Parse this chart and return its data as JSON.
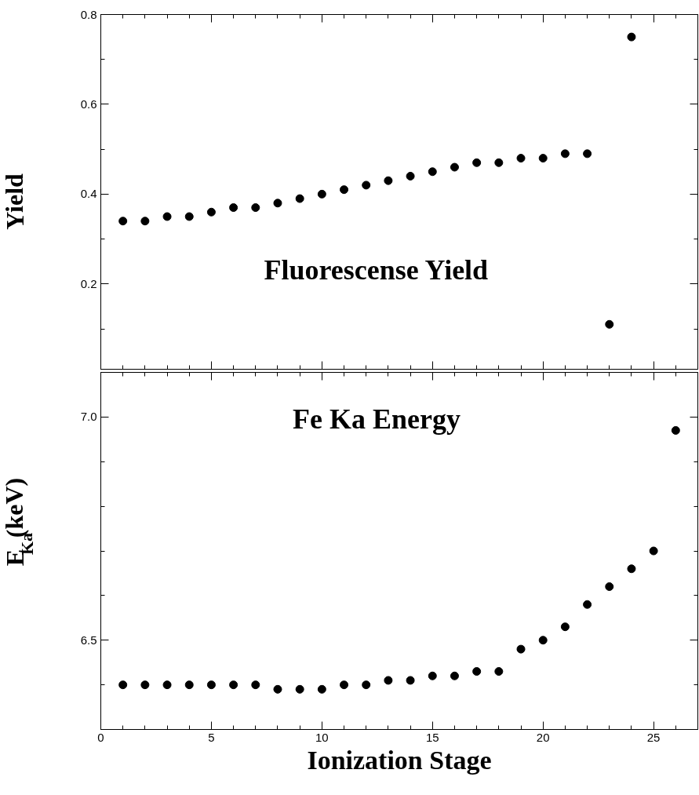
{
  "chart_data": [
    {
      "type": "scatter",
      "title": "Fluorescense Yield",
      "ylabel": "Yield",
      "marker": "circle",
      "tick_labels": "y",
      "grid": false,
      "x": [
        1,
        2,
        3,
        4,
        5,
        6,
        7,
        8,
        9,
        10,
        11,
        12,
        13,
        14,
        15,
        16,
        17,
        18,
        19,
        20,
        21,
        22,
        23,
        24
      ],
      "series": [
        {
          "color": "#000000",
          "values": [
            0.34,
            0.34,
            0.35,
            0.35,
            0.36,
            0.37,
            0.37,
            0.38,
            0.39,
            0.4,
            0.41,
            0.42,
            0.43,
            0.44,
            0.45,
            0.46,
            0.47,
            0.47,
            0.48,
            0.48,
            0.49,
            0.49,
            0.11,
            0.75
          ]
        }
      ],
      "xlim": [
        0,
        27
      ],
      "ylim": [
        0.01,
        0.8
      ],
      "xticks": [
        0,
        {
          "value": 1,
          "label": null
        },
        {
          "value": 2,
          "label": null
        },
        {
          "value": 3,
          "label": null
        },
        {
          "value": 4,
          "label": null
        },
        5,
        {
          "value": 6,
          "label": null
        },
        {
          "value": 7,
          "label": null
        },
        {
          "value": 8,
          "label": null
        },
        {
          "value": 9,
          "label": null
        },
        10,
        {
          "value": 11,
          "label": null
        },
        {
          "value": 12,
          "label": null
        },
        {
          "value": 13,
          "label": null
        },
        {
          "value": 14,
          "label": null
        },
        15,
        {
          "value": 16,
          "label": null
        },
        {
          "value": 17,
          "label": null
        },
        {
          "value": 18,
          "label": null
        },
        {
          "value": 19,
          "label": null
        },
        20,
        {
          "value": 21,
          "label": null
        },
        {
          "value": 22,
          "label": null
        },
        {
          "value": 23,
          "label": null
        },
        {
          "value": 24,
          "label": null
        },
        25,
        {
          "value": 26,
          "label": null
        }
      ],
      "yticks": [
        {
          "value": 0.1,
          "label": null
        },
        0.2,
        {
          "value": 0.3,
          "label": null
        },
        0.4,
        {
          "value": 0.5,
          "label": null
        },
        0.6,
        {
          "value": 0.7,
          "label": null
        },
        0.8
      ]
    },
    {
      "type": "scatter",
      "title": "Fe Ka Energy",
      "xlabel": "Ionization Stage",
      "ylabel": "E$_{Ka}$(keV)",
      "marker": "circle",
      "grid": false,
      "x": [
        1,
        2,
        3,
        4,
        5,
        6,
        7,
        8,
        9,
        10,
        11,
        12,
        13,
        14,
        15,
        16,
        17,
        18,
        19,
        20,
        21,
        22,
        23,
        24,
        25,
        26
      ],
      "series": [
        {
          "color": "#000000",
          "values": [
            6.4,
            6.4,
            6.4,
            6.4,
            6.4,
            6.4,
            6.4,
            6.39,
            6.39,
            6.39,
            6.4,
            6.4,
            6.41,
            6.41,
            6.42,
            6.42,
            6.43,
            6.43,
            6.48,
            6.5,
            6.53,
            6.58,
            6.62,
            6.66,
            6.7,
            6.97
          ]
        }
      ],
      "xlim": [
        0,
        27
      ],
      "ylim": [
        6.3,
        7.1
      ],
      "xticks": [
        0,
        {
          "value": 1,
          "label": null
        },
        {
          "value": 2,
          "label": null
        },
        {
          "value": 3,
          "label": null
        },
        {
          "value": 4,
          "label": null
        },
        5,
        {
          "value": 6,
          "label": null
        },
        {
          "value": 7,
          "label": null
        },
        {
          "value": 8,
          "label": null
        },
        {
          "value": 9,
          "label": null
        },
        10,
        {
          "value": 11,
          "label": null
        },
        {
          "value": 12,
          "label": null
        },
        {
          "value": 13,
          "label": null
        },
        {
          "value": 14,
          "label": null
        },
        15,
        {
          "value": 16,
          "label": null
        },
        {
          "value": 17,
          "label": null
        },
        {
          "value": 18,
          "label": null
        },
        {
          "value": 19,
          "label": null
        },
        20,
        {
          "value": 21,
          "label": null
        },
        {
          "value": 22,
          "label": null
        },
        {
          "value": 23,
          "label": null
        },
        {
          "value": 24,
          "label": null
        },
        25,
        {
          "value": 26,
          "label": null
        }
      ],
      "yticks": [
        {
          "value": 6.4,
          "label": null
        },
        {
          "value": 6.5,
          "label": "6.5"
        },
        {
          "value": 6.6,
          "label": null
        },
        {
          "value": 6.7,
          "label": null
        },
        {
          "value": 6.8,
          "label": null
        },
        {
          "value": 6.9,
          "label": null
        },
        {
          "value": 7.0,
          "label": "7.0"
        }
      ]
    }
  ]
}
